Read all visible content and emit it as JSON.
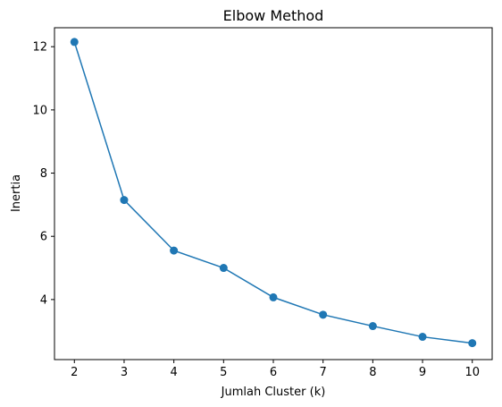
{
  "chart_data": {
    "type": "line",
    "title": "Elbow Method",
    "xlabel": "Jumlah Cluster (k)",
    "ylabel": "Inertia",
    "x": [
      2,
      3,
      4,
      5,
      6,
      7,
      8,
      9,
      10
    ],
    "series": [
      {
        "values": [
          12.15,
          7.15,
          5.55,
          5.0,
          4.07,
          3.52,
          3.16,
          2.82,
          2.62
        ],
        "color": "#1f77b4",
        "marker": "circle"
      }
    ],
    "xlim": [
      1.6,
      10.4
    ],
    "ylim": [
      2.1,
      12.6
    ],
    "xticks": [
      2,
      3,
      4,
      5,
      6,
      7,
      8,
      9,
      10
    ],
    "yticks": [
      4,
      6,
      8,
      10,
      12
    ],
    "grid": false,
    "legend": false
  }
}
